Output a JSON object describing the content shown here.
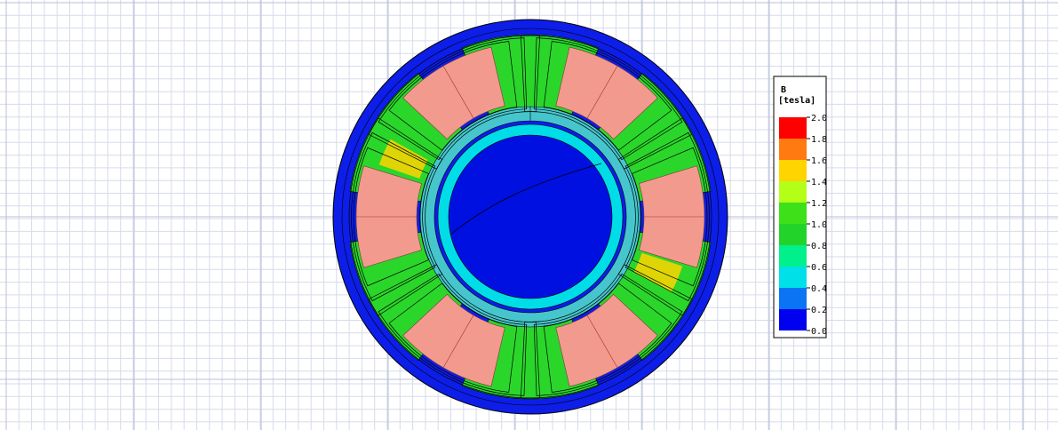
{
  "legend": {
    "title": "B",
    "unit": "[tesla]",
    "ticks": [
      "2.0",
      "1.8",
      "1.6",
      "1.4",
      "1.2",
      "1.0",
      "0.8",
      "0.6",
      "0.4",
      "0.2",
      "0.0"
    ],
    "colors": [
      "#ff0000",
      "#ff7a10",
      "#ffd400",
      "#b4ff18",
      "#3de019",
      "#22d42a",
      "#00f08c",
      "#00e0e8",
      "#0b74f4",
      "#0000f0"
    ]
  },
  "colors": {
    "grid_minor": "#d6dbeb",
    "grid_major": "#b8bfd8",
    "outer_yoke": "#0d1ee8",
    "stator_body": "#2bd62b",
    "coil": "#f39a8e",
    "air_gap_ring": "#46c6cc",
    "rotor_yoke": "#00dde6",
    "rotor_core": "#0010e0",
    "flux_line": "#000000",
    "saturation": "#ffd400"
  }
}
